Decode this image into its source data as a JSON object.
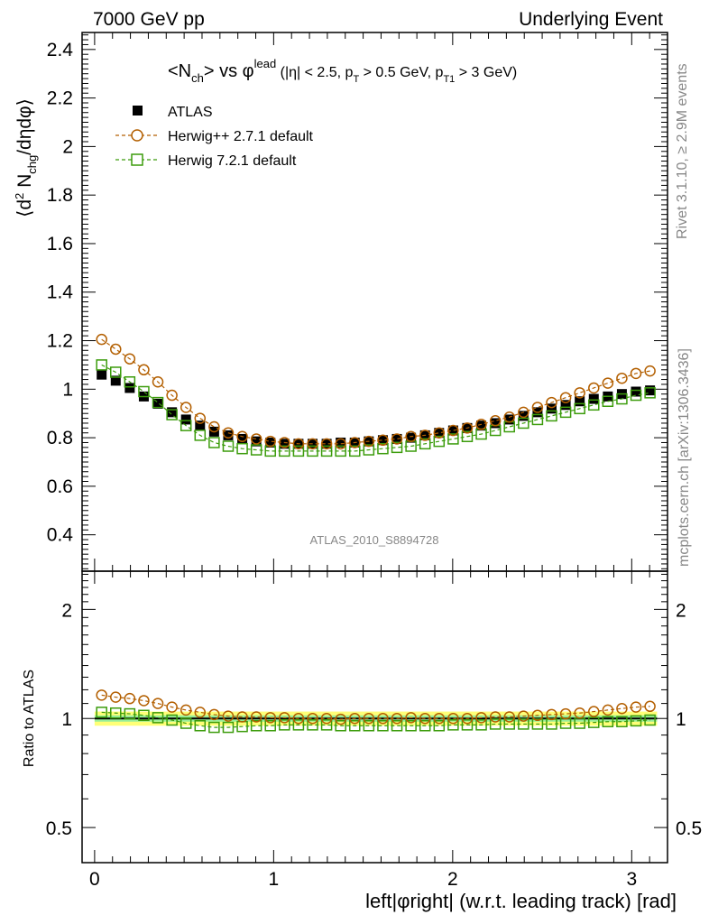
{
  "header": {
    "left": "7000 GeV pp",
    "right": "Underlying Event"
  },
  "side": {
    "rivet": "Rivet 3.1.10, ≥ 2.9M events",
    "mcplots": "mcplots.cern.ch [arXiv:1306.3436]"
  },
  "plot_title": {
    "main": "<N",
    "main_sub": "ch",
    "main_mid": "> vs φ",
    "main_sup": "lead",
    "cuts_a": " (|η| < 2.5, p",
    "cuts_a_sub": "T",
    "cuts_b": " > 0.5 GeV, p",
    "cuts_b_sub": "T1",
    "cuts_c": " > 3 GeV)"
  },
  "watermark": "ATLAS_2010_S8894728",
  "ylabel": {
    "a": "⟨d",
    "a_sup": "2",
    "b": " N",
    "b_sub": "chg",
    "c": "/dηdφ⟩"
  },
  "ratio_ylabel": "Ratio to ATLAS",
  "xlabel": "left|φright| (w.r.t. leading track) [rad]",
  "legend": [
    {
      "name": "ATLAS",
      "color": "#000000",
      "marker": "filled-square"
    },
    {
      "name": "Herwig++ 2.7.1 default",
      "color": "#b35f00",
      "marker": "open-circle"
    },
    {
      "name": "Herwig 7.2.1 default",
      "color": "#3c9c0c",
      "marker": "open-square"
    }
  ],
  "colors": {
    "band_inner": "#99ee99",
    "band_outer": "#ffff77"
  },
  "chart_data": {
    "type": "scatter",
    "title": "<Nch> vs φlead (|η| < 2.5, pT > 0.5 GeV, pT1 > 3 GeV)",
    "xlabel": "left|φright| (w.r.t. leading track) [rad]",
    "ylabel": "⟨d2 Nchg/dηdφ⟩",
    "xlim": [
      -0.07,
      3.2
    ],
    "ylim": [
      0.25,
      2.47
    ],
    "ratio_ylim": [
      0.4,
      2.55
    ],
    "ratio_log": true,
    "x_ticks": [
      "0",
      "1",
      "2",
      "3"
    ],
    "y_ticks": [
      "0.4",
      "0.6",
      "0.8",
      "1",
      "1.2",
      "1.4",
      "1.6",
      "1.8",
      "2",
      "2.2",
      "2.4"
    ],
    "ratio_ticks": [
      "0.5",
      "1",
      "2"
    ],
    "x": [
      0.0393,
      0.1178,
      0.1963,
      0.2749,
      0.3534,
      0.432,
      0.5105,
      0.589,
      0.6676,
      0.7461,
      0.8247,
      0.9032,
      0.9817,
      1.0603,
      1.1388,
      1.2174,
      1.2959,
      1.3744,
      1.453,
      1.5315,
      1.6101,
      1.6886,
      1.7671,
      1.8457,
      1.9242,
      2.0028,
      2.0813,
      2.1598,
      2.2384,
      2.3169,
      2.3955,
      2.474,
      2.5525,
      2.6311,
      2.7096,
      2.7882,
      2.8667,
      2.9452,
      3.0238,
      3.1023
    ],
    "series": [
      {
        "name": "ATLAS",
        "values": [
          1.06,
          1.035,
          1.005,
          0.97,
          0.94,
          0.905,
          0.875,
          0.85,
          0.825,
          0.81,
          0.795,
          0.785,
          0.78,
          0.775,
          0.775,
          0.775,
          0.775,
          0.78,
          0.78,
          0.785,
          0.79,
          0.795,
          0.8,
          0.81,
          0.82,
          0.83,
          0.84,
          0.85,
          0.86,
          0.875,
          0.89,
          0.905,
          0.92,
          0.935,
          0.95,
          0.96,
          0.97,
          0.98,
          0.99,
          0.995
        ]
      },
      {
        "name": "Herwig++ 2.7.1 default",
        "values": [
          1.205,
          1.165,
          1.125,
          1.08,
          1.03,
          0.975,
          0.925,
          0.88,
          0.845,
          0.82,
          0.805,
          0.795,
          0.785,
          0.78,
          0.775,
          0.775,
          0.775,
          0.775,
          0.78,
          0.785,
          0.79,
          0.795,
          0.805,
          0.81,
          0.82,
          0.83,
          0.84,
          0.855,
          0.87,
          0.885,
          0.905,
          0.925,
          0.945,
          0.965,
          0.985,
          1.005,
          1.025,
          1.045,
          1.065,
          1.075
        ]
      },
      {
        "name": "Herwig 7.2.1 default",
        "values": [
          1.1,
          1.07,
          1.03,
          0.99,
          0.945,
          0.895,
          0.85,
          0.81,
          0.78,
          0.765,
          0.755,
          0.75,
          0.745,
          0.745,
          0.745,
          0.745,
          0.745,
          0.745,
          0.745,
          0.75,
          0.755,
          0.76,
          0.765,
          0.775,
          0.785,
          0.795,
          0.805,
          0.815,
          0.83,
          0.845,
          0.86,
          0.875,
          0.89,
          0.905,
          0.92,
          0.935,
          0.95,
          0.96,
          0.975,
          0.985
        ]
      }
    ],
    "ratio_series": [
      {
        "name": "Herwig++ 2.7.1 default",
        "values": [
          1.16,
          1.145,
          1.135,
          1.12,
          1.1,
          1.075,
          1.055,
          1.04,
          1.025,
          1.015,
          1.01,
          1.01,
          1.005,
          1.005,
          1.0,
          1.0,
          1.0,
          0.995,
          1.0,
          1.0,
          1.0,
          1.0,
          1.005,
          1.0,
          1.0,
          1.0,
          1.0,
          1.005,
          1.01,
          1.01,
          1.015,
          1.02,
          1.025,
          1.03,
          1.035,
          1.045,
          1.055,
          1.065,
          1.075,
          1.08
        ]
      },
      {
        "name": "Herwig 7.2.1 default",
        "values": [
          1.04,
          1.035,
          1.03,
          1.02,
          1.005,
          0.99,
          0.97,
          0.955,
          0.945,
          0.945,
          0.95,
          0.955,
          0.955,
          0.96,
          0.96,
          0.96,
          0.96,
          0.955,
          0.955,
          0.955,
          0.955,
          0.955,
          0.955,
          0.955,
          0.955,
          0.96,
          0.96,
          0.96,
          0.965,
          0.965,
          0.965,
          0.965,
          0.965,
          0.97,
          0.97,
          0.975,
          0.98,
          0.98,
          0.985,
          0.99
        ]
      }
    ],
    "ratio_band_inner": 0.02,
    "ratio_band_outer": 0.045
  }
}
